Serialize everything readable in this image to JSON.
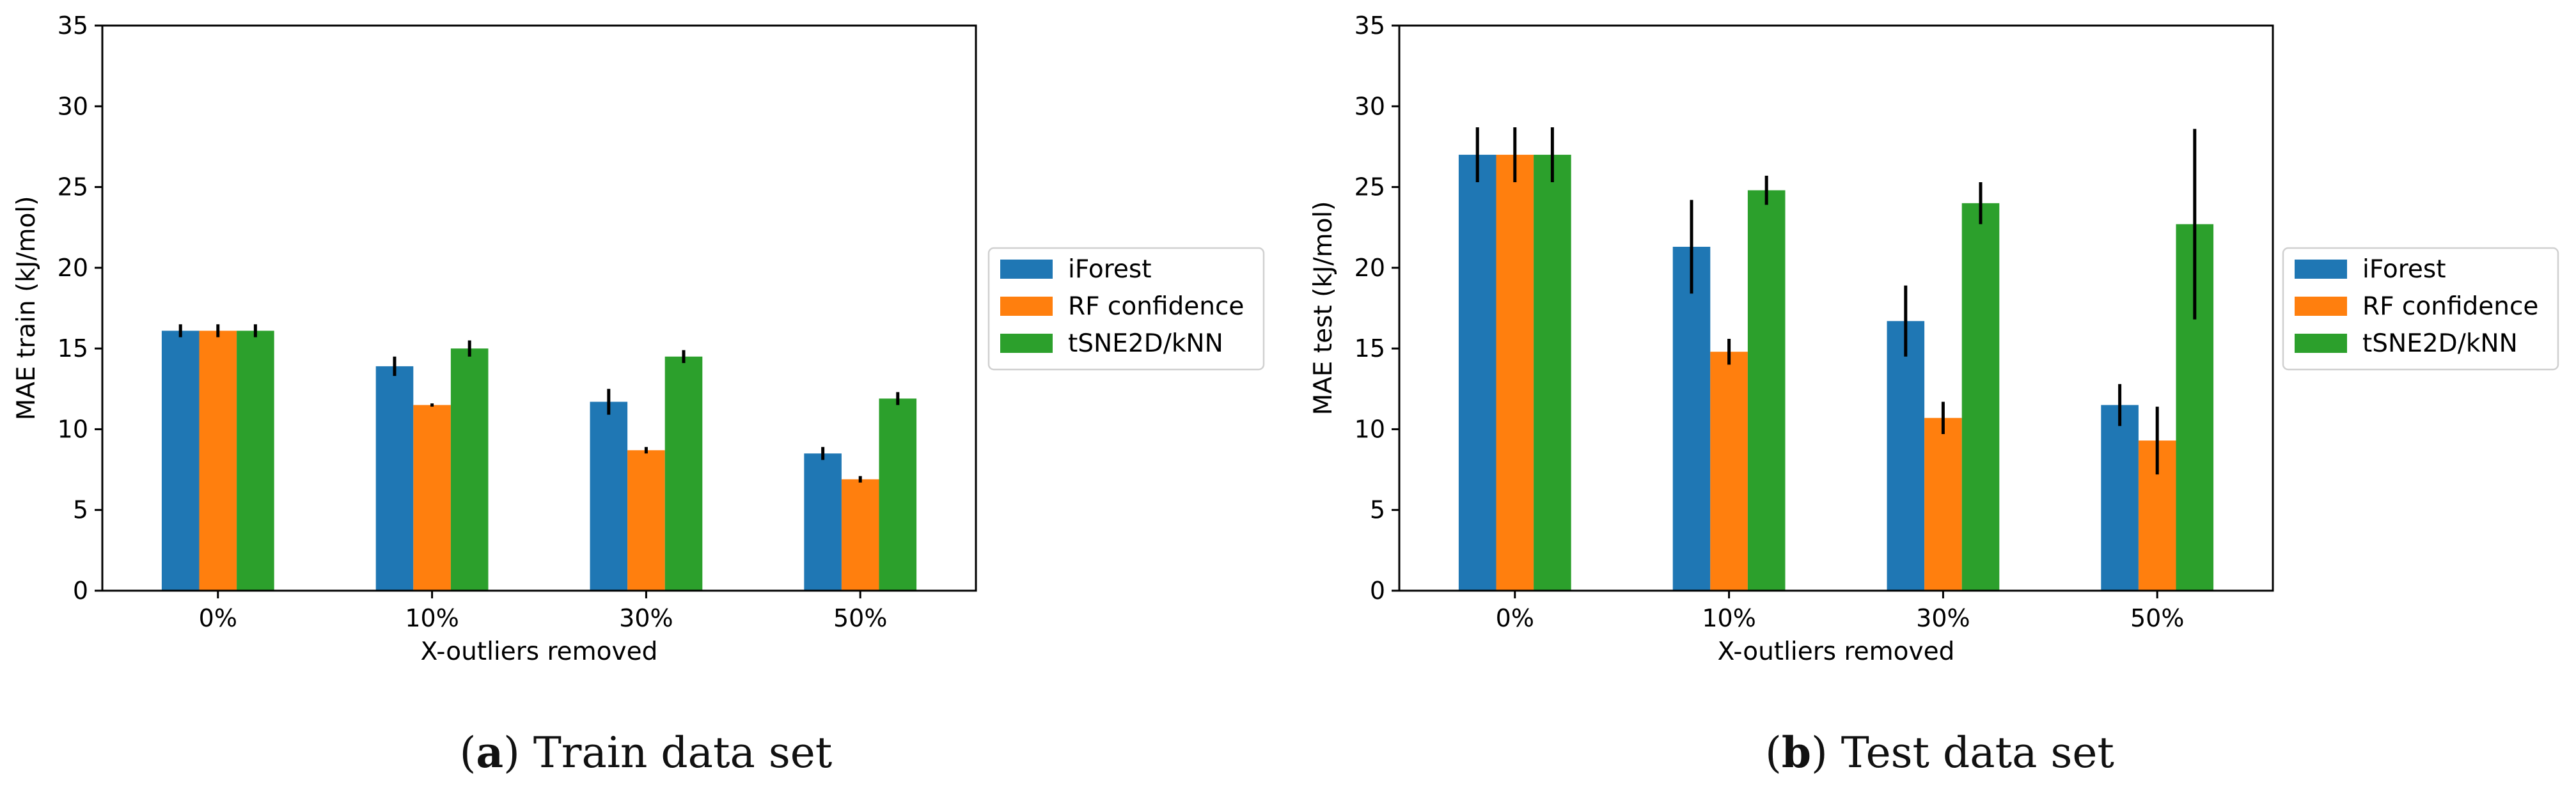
{
  "colors": {
    "iForest": "#1f77b4",
    "RF confidence": "#ff7f0e",
    "tSNE2D/kNN": "#2ca02c",
    "errorbar": "#000000",
    "axes": "#000000"
  },
  "chart_data": [
    {
      "type": "bar",
      "panel_letter": "a",
      "caption_text": " Train data set",
      "xlabel": "X-outliers removed",
      "ylabel": "MAE train (kJ/mol)",
      "ylim": [
        0,
        35
      ],
      "yticks": [
        0,
        5,
        10,
        15,
        20,
        25,
        30,
        35
      ],
      "categories": [
        "0%",
        "10%",
        "30%",
        "50%"
      ],
      "legend_position": "right",
      "series": [
        {
          "name": "iForest",
          "values": [
            16.1,
            13.9,
            11.7,
            8.5
          ],
          "errors": [
            0.4,
            0.6,
            0.8,
            0.4
          ]
        },
        {
          "name": "RF confidence",
          "values": [
            16.1,
            11.5,
            8.7,
            6.9
          ],
          "errors": [
            0.4,
            0.1,
            0.2,
            0.2
          ]
        },
        {
          "name": "tSNE2D/kNN",
          "values": [
            16.1,
            15.0,
            14.5,
            11.9
          ],
          "errors": [
            0.4,
            0.5,
            0.4,
            0.4
          ]
        }
      ]
    },
    {
      "type": "bar",
      "panel_letter": "b",
      "caption_text": " Test data set",
      "xlabel": "X-outliers removed",
      "ylabel": "MAE test (kJ/mol)",
      "ylim": [
        0,
        35
      ],
      "yticks": [
        0,
        5,
        10,
        15,
        20,
        25,
        30,
        35
      ],
      "categories": [
        "0%",
        "10%",
        "30%",
        "50%"
      ],
      "legend_position": "right",
      "series": [
        {
          "name": "iForest",
          "values": [
            27.0,
            21.3,
            16.7,
            11.5
          ],
          "errors": [
            1.7,
            2.9,
            2.2,
            1.3
          ]
        },
        {
          "name": "RF confidence",
          "values": [
            27.0,
            14.8,
            10.7,
            9.3
          ],
          "errors": [
            1.7,
            0.8,
            1.0,
            2.1
          ]
        },
        {
          "name": "tSNE2D/kNN",
          "values": [
            27.0,
            24.8,
            24.0,
            22.7
          ],
          "errors": [
            1.7,
            0.9,
            1.3,
            5.9
          ]
        }
      ]
    }
  ]
}
